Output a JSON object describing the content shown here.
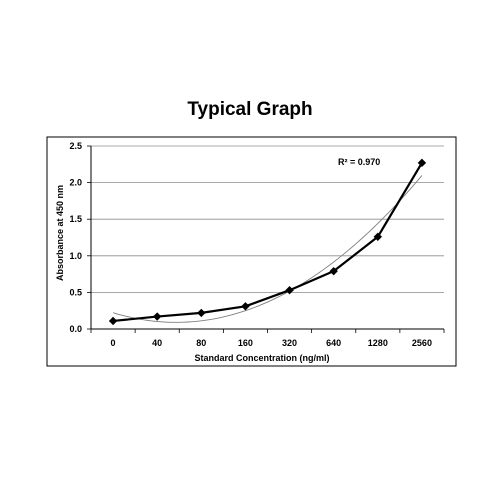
{
  "chart_data": {
    "type": "line",
    "title": "Typical Graph",
    "xlabel": "Standard Concentration (ng/ml)",
    "ylabel": "Absorbance at 450 nm",
    "categories": [
      "0",
      "40",
      "80",
      "160",
      "320",
      "640",
      "1280",
      "2560"
    ],
    "ylim": [
      0,
      2.5
    ],
    "yticks": [
      "0.0",
      "0.5",
      "1.0",
      "1.5",
      "2.0",
      "2.5"
    ],
    "series": [
      {
        "values": [
          0.11,
          0.17,
          0.22,
          0.31,
          0.53,
          0.79,
          1.26,
          2.27
        ],
        "marker": "diamond",
        "color": "#000000"
      }
    ],
    "trendline": {
      "type": "polynomial",
      "r2_label": "R² = 0.970",
      "color": "#7f7f7f"
    },
    "grid": {
      "horizontal": true,
      "vertical": false
    }
  }
}
